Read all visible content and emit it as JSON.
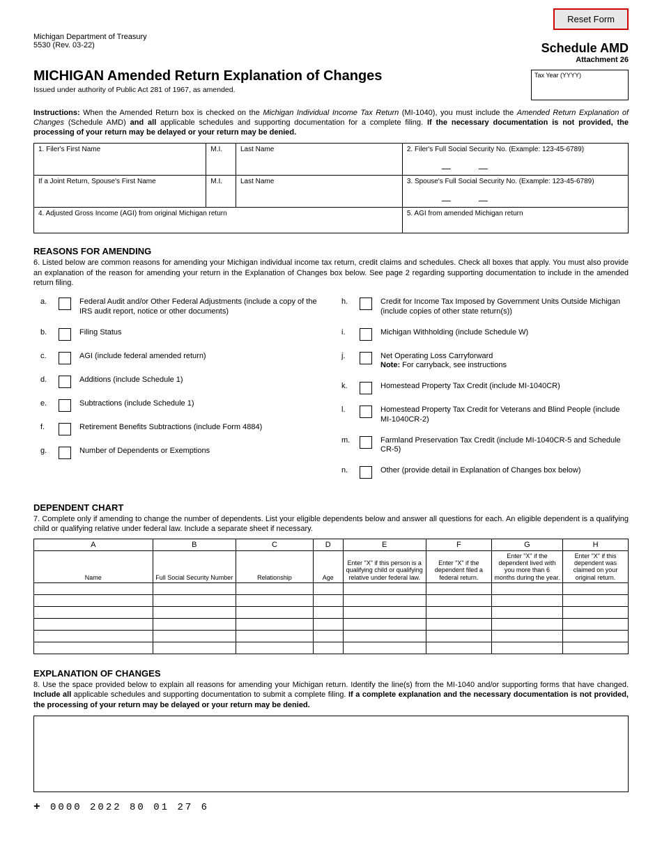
{
  "header": {
    "reset_button": "Reset Form",
    "dept": "Michigan Department of Treasury",
    "form_no": "5530 (Rev. 03-22)",
    "schedule": "Schedule AMD",
    "attachment": "Attachment 26",
    "main_title": "MICHIGAN Amended Return Explanation of Changes",
    "authority": "Issued under authority of Public Act 281 of 1967, as amended.",
    "tax_year_label": "Tax Year (YYYY)"
  },
  "instructions": {
    "label": "Instructions:",
    "text1": " When the Amended Return box is checked on the ",
    "ital1": "Michigan Individual Income Tax Return",
    "text2": " (MI-1040), you must include the ",
    "ital2": "Amended Return Explanation of Changes",
    "text3": " (Schedule AMD) ",
    "bold1": "and all",
    "text4": " applicable schedules and supporting documentation for a complete filing. ",
    "bold2": "If the necessary documentation is not provided, the processing of your return may be delayed or your return may be denied."
  },
  "fields": {
    "f1": "1. Filer's First Name",
    "mi": "M.I.",
    "ln": "Last Name",
    "f2": "2. Filer's Full Social Security No. (Example: 123-45-6789)",
    "spouse_fn": "If a Joint Return, Spouse's First Name",
    "f3": "3. Spouse's Full Social Security No. (Example: 123-45-6789)",
    "f4": "4. Adjusted Gross Income (AGI) from original Michigan return",
    "f5": "5. AGI from amended Michigan return"
  },
  "reasons": {
    "heading": "REASONS FOR AMENDING",
    "intro": "6. Listed below are common reasons for amending your Michigan individual income tax return, credit claims and schedules. Check all boxes that apply. You must also provide an explanation of the reason for amending your return in the Explanation of Changes box below. See page 2 regarding supporting documentation to include in the amended return filing.",
    "left": [
      {
        "l": "a.",
        "t": "Federal Audit and/or Other Federal Adjustments (include a copy of the IRS audit report, notice or other documents)"
      },
      {
        "l": "b.",
        "t": "Filing Status"
      },
      {
        "l": "c.",
        "t": "AGI (include federal amended return)"
      },
      {
        "l": "d.",
        "t": "Additions (include Schedule 1)"
      },
      {
        "l": "e.",
        "t": "Subtractions (include Schedule 1)"
      },
      {
        "l": "f.",
        "t": "Retirement Benefits Subtractions (include Form 4884)"
      },
      {
        "l": "g.",
        "t": "Number of Dependents or Exemptions"
      }
    ],
    "right": [
      {
        "l": "h.",
        "t": "Credit for Income Tax Imposed by Government Units Outside Michigan (include copies of other state return(s))"
      },
      {
        "l": "i.",
        "t": "Michigan Withholding (include Schedule W)"
      },
      {
        "l": "j.",
        "t": "Net Operating Loss Carryforward",
        "note": "Note:",
        "note_t": " For carryback, see instructions"
      },
      {
        "l": "k.",
        "t": "Homestead Property Tax Credit (include MI-1040CR)"
      },
      {
        "l": "l.",
        "t": "Homestead Property Tax Credit for Veterans and Blind People (include MI-1040CR-2)"
      },
      {
        "l": "m.",
        "t": "Farmland Preservation Tax Credit (include MI-1040CR-5 and Schedule CR-5)"
      },
      {
        "l": "n.",
        "t": "Other (provide detail in Explanation of Changes box below)"
      }
    ]
  },
  "dependent": {
    "heading": "DEPENDENT CHART",
    "intro": "7. Complete only if amending to change the number of dependents. List your eligible dependents below and answer all questions for each. An eligible dependent is a qualifying child or qualifying relative under federal law. Include a separate sheet if necessary.",
    "cols": [
      "A",
      "B",
      "C",
      "D",
      "E",
      "F",
      "G",
      "H"
    ],
    "sub": {
      "A": "Name",
      "B": "Full Social Security Number",
      "C": "Relationship",
      "D": "Age",
      "E": "Enter \"X\" if this person is a qualifying child or qualifying relative under federal law.",
      "F": "Enter \"X\" if the dependent filed a federal return.",
      "G": "Enter \"X\" if the dependent lived with you more than 6 months during the year.",
      "H": "Enter \"X\" if this dependent was claimed on your original return."
    },
    "row_count": 6,
    "col_widths": [
      "20%",
      "14%",
      "13%",
      "5%",
      "14%",
      "11%",
      "12%",
      "11%"
    ]
  },
  "explanation": {
    "heading": "EXPLANATION OF CHANGES",
    "intro1": "8. Use the space provided below to explain all reasons for amending your Michigan return. Identify the line(s) from the MI-1040 and/or supporting forms that have changed. ",
    "bold1": "Include all",
    "intro2": " applicable schedules and supporting documentation to submit a complete filing. ",
    "bold2": "If a complete explanation and the necessary documentation is not provided, the processing of your return may be delayed or your return may be denied."
  },
  "footer": {
    "code": "0000 2022 80 01 27 6"
  }
}
